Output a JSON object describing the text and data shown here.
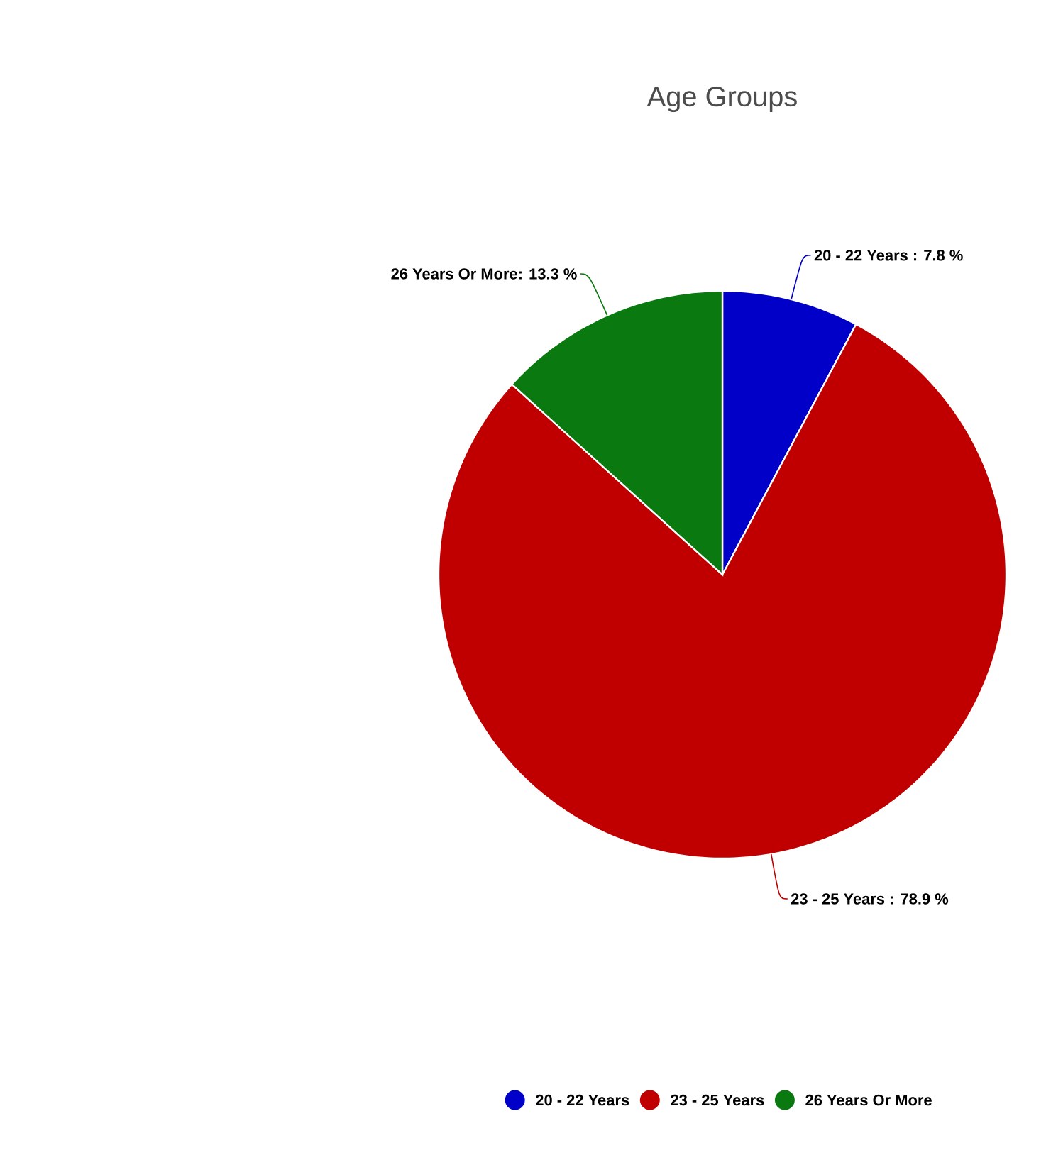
{
  "chart_data": {
    "type": "pie",
    "title": "Age Groups",
    "categories": [
      "20 - 22 Years",
      "23 - 25 Years",
      "26 Years Or More"
    ],
    "values": [
      7.8,
      78.9,
      13.3
    ],
    "colors": [
      "#0000c8",
      "#c00000",
      "#0a7a10"
    ],
    "value_labels": [
      "20 - 22 Years : 7.8 %",
      "23 - 25 Years : 78.9 %",
      "26 Years Or More: 13.3 %"
    ],
    "legend": "bottom"
  }
}
